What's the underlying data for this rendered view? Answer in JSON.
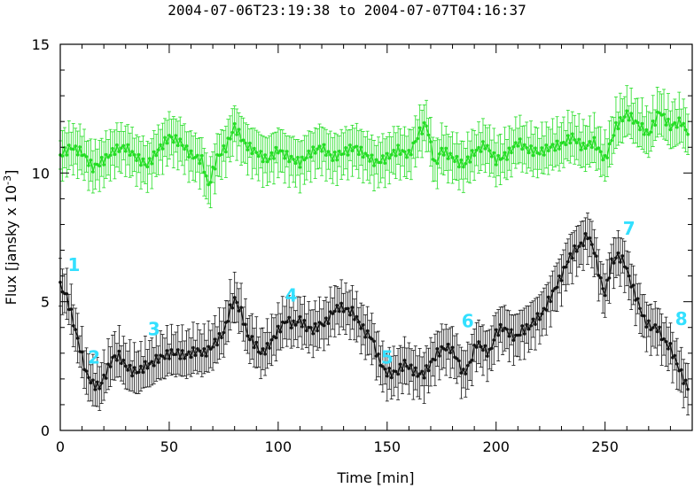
{
  "header": {
    "title": "2004-07-06T23:19:38 to 2004-07-07T04:16:37"
  },
  "chart_data": {
    "type": "scatter",
    "title": "2004-07-06T23:19:38 to 2004-07-07T04:16:37",
    "xlabel": "Time [min]",
    "ylabel": "Flux [jansky x 10^-3]",
    "xlim": [
      0,
      290
    ],
    "ylim": [
      0,
      15
    ],
    "x_ticks": [
      0,
      50,
      100,
      150,
      200,
      250
    ],
    "y_ticks": [
      0,
      5,
      10,
      15
    ],
    "grid": false,
    "series": [
      {
        "color": "#22dd22",
        "points": [
          [
            0,
            10.7
          ],
          [
            5,
            11.0
          ],
          [
            10,
            10.8
          ],
          [
            15,
            10.2
          ],
          [
            20,
            10.5
          ],
          [
            25,
            10.9
          ],
          [
            30,
            11.0
          ],
          [
            35,
            10.6
          ],
          [
            40,
            10.3
          ],
          [
            45,
            10.9
          ],
          [
            50,
            11.4
          ],
          [
            55,
            11.2
          ],
          [
            60,
            10.7
          ],
          [
            65,
            10.5
          ],
          [
            68,
            9.5
          ],
          [
            72,
            10.6
          ],
          [
            76,
            11.0
          ],
          [
            80,
            11.8
          ],
          [
            85,
            11.1
          ],
          [
            90,
            10.8
          ],
          [
            95,
            10.5
          ],
          [
            100,
            10.9
          ],
          [
            105,
            10.6
          ],
          [
            110,
            10.4
          ],
          [
            115,
            10.8
          ],
          [
            120,
            11.0
          ],
          [
            125,
            10.6
          ],
          [
            130,
            10.8
          ],
          [
            135,
            11.0
          ],
          [
            140,
            10.7
          ],
          [
            145,
            10.4
          ],
          [
            150,
            10.6
          ],
          [
            155,
            10.9
          ],
          [
            160,
            10.7
          ],
          [
            165,
            11.6
          ],
          [
            168,
            11.9
          ],
          [
            172,
            10.3
          ],
          [
            175,
            10.9
          ],
          [
            180,
            10.6
          ],
          [
            185,
            10.3
          ],
          [
            190,
            10.8
          ],
          [
            195,
            11.1
          ],
          [
            200,
            10.5
          ],
          [
            205,
            10.7
          ],
          [
            210,
            11.2
          ],
          [
            215,
            10.9
          ],
          [
            220,
            10.8
          ],
          [
            225,
            11.0
          ],
          [
            230,
            11.1
          ],
          [
            235,
            11.4
          ],
          [
            240,
            11.0
          ],
          [
            245,
            11.2
          ],
          [
            250,
            10.5
          ],
          [
            255,
            11.8
          ],
          [
            260,
            12.3
          ],
          [
            265,
            11.9
          ],
          [
            270,
            11.5
          ],
          [
            275,
            12.4
          ],
          [
            280,
            11.8
          ],
          [
            285,
            12.0
          ],
          [
            288,
            11.5
          ]
        ]
      },
      {
        "color": "#111111",
        "points": [
          [
            0,
            5.6
          ],
          [
            3,
            5.2
          ],
          [
            6,
            4.2
          ],
          [
            9,
            3.2
          ],
          [
            12,
            2.2
          ],
          [
            15,
            1.8
          ],
          [
            18,
            1.7
          ],
          [
            21,
            2.2
          ],
          [
            24,
            2.8
          ],
          [
            27,
            2.9
          ],
          [
            30,
            2.5
          ],
          [
            33,
            2.3
          ],
          [
            36,
            2.3
          ],
          [
            39,
            2.5
          ],
          [
            42,
            2.6
          ],
          [
            45,
            2.8
          ],
          [
            48,
            2.9
          ],
          [
            51,
            3.0
          ],
          [
            54,
            3.0
          ],
          [
            57,
            2.9
          ],
          [
            60,
            3.0
          ],
          [
            63,
            3.1
          ],
          [
            66,
            3.0
          ],
          [
            69,
            3.2
          ],
          [
            72,
            3.5
          ],
          [
            75,
            3.8
          ],
          [
            78,
            4.7
          ],
          [
            80,
            5.1
          ],
          [
            83,
            4.6
          ],
          [
            86,
            3.7
          ],
          [
            89,
            3.4
          ],
          [
            92,
            3.0
          ],
          [
            95,
            3.2
          ],
          [
            98,
            3.6
          ],
          [
            101,
            4.0
          ],
          [
            104,
            4.3
          ],
          [
            107,
            4.1
          ],
          [
            110,
            4.3
          ],
          [
            113,
            4.0
          ],
          [
            116,
            3.9
          ],
          [
            119,
            4.1
          ],
          [
            122,
            4.2
          ],
          [
            125,
            4.6
          ],
          [
            128,
            4.8
          ],
          [
            131,
            4.7
          ],
          [
            134,
            4.6
          ],
          [
            137,
            4.2
          ],
          [
            140,
            3.8
          ],
          [
            143,
            3.6
          ],
          [
            146,
            2.8
          ],
          [
            149,
            2.3
          ],
          [
            152,
            2.2
          ],
          [
            155,
            2.3
          ],
          [
            158,
            2.6
          ],
          [
            161,
            2.4
          ],
          [
            164,
            2.2
          ],
          [
            167,
            2.2
          ],
          [
            170,
            2.6
          ],
          [
            173,
            3.0
          ],
          [
            176,
            3.2
          ],
          [
            179,
            3.2
          ],
          [
            182,
            2.8
          ],
          [
            185,
            2.2
          ],
          [
            188,
            2.6
          ],
          [
            191,
            3.4
          ],
          [
            194,
            3.2
          ],
          [
            197,
            3.0
          ],
          [
            200,
            3.8
          ],
          [
            203,
            4.0
          ],
          [
            206,
            3.8
          ],
          [
            209,
            3.6
          ],
          [
            212,
            3.9
          ],
          [
            215,
            4.0
          ],
          [
            218,
            4.3
          ],
          [
            221,
            4.5
          ],
          [
            224,
            5.0
          ],
          [
            227,
            5.5
          ],
          [
            230,
            6.0
          ],
          [
            233,
            6.6
          ],
          [
            236,
            7.0
          ],
          [
            239,
            7.2
          ],
          [
            242,
            7.6
          ],
          [
            245,
            7.0
          ],
          [
            248,
            5.8
          ],
          [
            250,
            5.3
          ],
          [
            253,
            6.5
          ],
          [
            256,
            6.8
          ],
          [
            259,
            6.5
          ],
          [
            262,
            5.7
          ],
          [
            265,
            5.0
          ],
          [
            268,
            4.3
          ],
          [
            271,
            4.0
          ],
          [
            274,
            4.0
          ],
          [
            277,
            3.5
          ],
          [
            280,
            3.2
          ],
          [
            283,
            2.6
          ],
          [
            286,
            2.0
          ],
          [
            288,
            1.6
          ]
        ]
      }
    ],
    "annotations": [
      {
        "text": "1",
        "x": 6.3,
        "y": 6.2
      },
      {
        "text": "2",
        "x": 15.5,
        "y": 2.6
      },
      {
        "text": "3",
        "x": 43,
        "y": 3.7
      },
      {
        "text": "4",
        "x": 106,
        "y": 5.0
      },
      {
        "text": "5",
        "x": 150,
        "y": 2.6
      },
      {
        "text": "6",
        "x": 187,
        "y": 4.0
      },
      {
        "text": "7",
        "x": 261,
        "y": 7.6
      },
      {
        "text": "8",
        "x": 285,
        "y": 4.1
      }
    ]
  }
}
